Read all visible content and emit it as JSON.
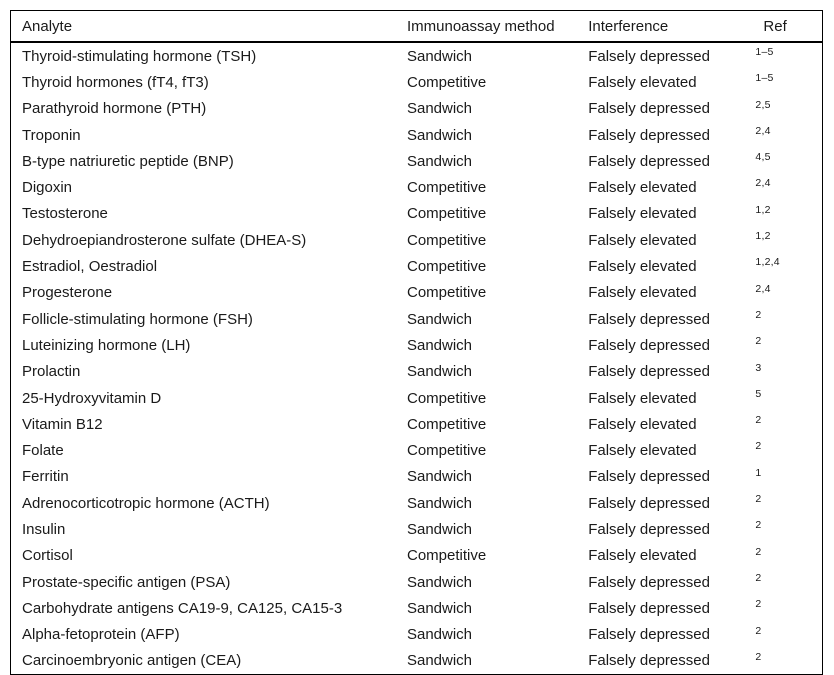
{
  "table": {
    "columns": [
      {
        "label": "Analyte"
      },
      {
        "label": "Immunoassay method"
      },
      {
        "label": "Interference"
      },
      {
        "label": "Ref"
      }
    ],
    "rows": [
      {
        "analyte": "Thyroid-stimulating hormone (TSH)",
        "method": "Sandwich",
        "interference": "Falsely depressed",
        "ref": "1–5"
      },
      {
        "analyte": "Thyroid hormones (fT4, fT3)",
        "method": "Competitive",
        "interference": "Falsely elevated",
        "ref": "1–5"
      },
      {
        "analyte": "Parathyroid hormone (PTH)",
        "method": "Sandwich",
        "interference": "Falsely depressed",
        "ref": "2,5"
      },
      {
        "analyte": "Troponin",
        "method": "Sandwich",
        "interference": "Falsely depressed",
        "ref": "2,4"
      },
      {
        "analyte": "B-type natriuretic peptide (BNP)",
        "method": "Sandwich",
        "interference": "Falsely depressed",
        "ref": "4,5"
      },
      {
        "analyte": "Digoxin",
        "method": "Competitive",
        "interference": "Falsely elevated",
        "ref": "2,4"
      },
      {
        "analyte": "Testosterone",
        "method": "Competitive",
        "interference": "Falsely elevated",
        "ref": "1,2"
      },
      {
        "analyte": "Dehydroepiandrosterone sulfate (DHEA-S)",
        "method": "Competitive",
        "interference": "Falsely elevated",
        "ref": "1,2"
      },
      {
        "analyte": "Estradiol, Oestradiol",
        "method": "Competitive",
        "interference": "Falsely elevated",
        "ref": "1,2,4"
      },
      {
        "analyte": "Progesterone",
        "method": "Competitive",
        "interference": "Falsely elevated",
        "ref": "2,4"
      },
      {
        "analyte": "Follicle-stimulating hormone (FSH)",
        "method": "Sandwich",
        "interference": "Falsely depressed",
        "ref": "2"
      },
      {
        "analyte": "Luteinizing hormone (LH)",
        "method": "Sandwich",
        "interference": "Falsely depressed",
        "ref": "2"
      },
      {
        "analyte": "Prolactin",
        "method": "Sandwich",
        "interference": "Falsely depressed",
        "ref": "3"
      },
      {
        "analyte": "25-Hydroxyvitamin D",
        "method": "Competitive",
        "interference": "Falsely elevated",
        "ref": "5"
      },
      {
        "analyte": "Vitamin B12",
        "method": "Competitive",
        "interference": "Falsely elevated",
        "ref": "2"
      },
      {
        "analyte": "Folate",
        "method": "Competitive",
        "interference": "Falsely elevated",
        "ref": "2"
      },
      {
        "analyte": "Ferritin",
        "method": "Sandwich",
        "interference": "Falsely depressed",
        "ref": "1"
      },
      {
        "analyte": "Adrenocorticotropic hormone (ACTH)",
        "method": "Sandwich",
        "interference": "Falsely depressed",
        "ref": "2"
      },
      {
        "analyte": "Insulin",
        "method": "Sandwich",
        "interference": "Falsely depressed",
        "ref": "2"
      },
      {
        "analyte": "Cortisol",
        "method": "Competitive",
        "interference": "Falsely elevated",
        "ref": "2"
      },
      {
        "analyte": "Prostate-specific antigen (PSA)",
        "method": "Sandwich",
        "interference": "Falsely depressed",
        "ref": "2"
      },
      {
        "analyte": "Carbohydrate antigens CA19-9, CA125, CA15-3",
        "method": "Sandwich",
        "interference": "Falsely depressed",
        "ref": "2"
      },
      {
        "analyte": "Alpha-fetoprotein (AFP)",
        "method": "Sandwich",
        "interference": "Falsely depressed",
        "ref": "2"
      },
      {
        "analyte": "Carcinoembryonic antigen (CEA)",
        "method": "Sandwich",
        "interference": "Falsely depressed",
        "ref": "2"
      }
    ]
  }
}
